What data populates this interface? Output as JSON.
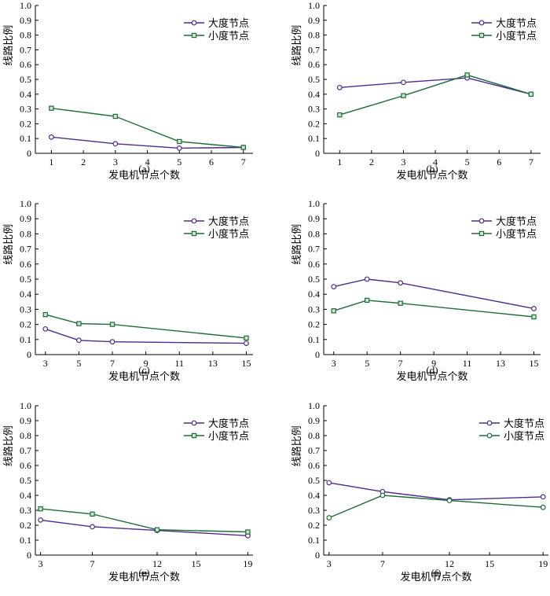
{
  "colors": {
    "large_degree": "#4b2d8a",
    "small_degree": "#1f6b3a"
  },
  "chart_data": [
    {
      "type": "line",
      "caption": "(a)",
      "xlabel": "发电机节点个数",
      "ylabel": "线路比例",
      "xlim": [
        0.5,
        7.3
      ],
      "ylim": [
        0,
        1
      ],
      "xticks": [
        1,
        2,
        3,
        4,
        5,
        6,
        7
      ],
      "yticks": [
        0,
        0.1,
        0.2,
        0.3,
        0.4,
        0.5,
        0.6,
        0.7,
        0.8,
        0.9,
        1.0
      ],
      "yticklabels": [
        "0",
        "0.1",
        "0.2",
        "0.3",
        "0.4",
        "0.5",
        "0.6",
        "0.7",
        "0.8",
        "0.9",
        "1.0"
      ],
      "x": [
        1,
        3,
        5,
        7
      ],
      "series": [
        {
          "name": "大度节点",
          "values": [
            0.11,
            0.065,
            0.035,
            0.04
          ],
          "marker": "circle"
        },
        {
          "name": "小度节点",
          "values": [
            0.305,
            0.25,
            0.08,
            0.04
          ],
          "marker": "square"
        }
      ],
      "legend": "top-right"
    },
    {
      "type": "line",
      "caption": "(b)",
      "xlabel": "发电机节点个数",
      "ylabel": "线路比例",
      "xlim": [
        0.5,
        7.3
      ],
      "ylim": [
        0,
        1
      ],
      "xticks": [
        1,
        2,
        3,
        4,
        5,
        6,
        7
      ],
      "yticks": [
        0,
        0.1,
        0.2,
        0.3,
        0.4,
        0.5,
        0.6,
        0.7,
        0.8,
        0.9,
        1.0
      ],
      "yticklabels": [
        "0",
        "0.1",
        "0.2",
        "0.3",
        "0.4",
        "0.5",
        "0.6",
        "0.7",
        "0.8",
        "0.9",
        "1.0"
      ],
      "x": [
        1,
        3,
        5,
        7
      ],
      "series": [
        {
          "name": "大度节点",
          "values": [
            0.445,
            0.48,
            0.51,
            0.4
          ],
          "marker": "circle"
        },
        {
          "name": "小度节点",
          "values": [
            0.26,
            0.39,
            0.53,
            0.4
          ],
          "marker": "square"
        }
      ],
      "legend": "top-right"
    },
    {
      "type": "line",
      "caption": "(c)",
      "xlabel": "发电机节点个数",
      "ylabel": "线路比例",
      "xlim": [
        2.4,
        15.4
      ],
      "ylim": [
        0,
        1
      ],
      "xticks": [
        3,
        5,
        7,
        9,
        11,
        13,
        15
      ],
      "yticks": [
        0,
        0.1,
        0.2,
        0.3,
        0.4,
        0.5,
        0.6,
        0.7,
        0.8,
        0.9,
        1.0
      ],
      "yticklabels": [
        "0",
        "0.1",
        "0.2",
        "0.3",
        "0.4",
        "0.5",
        "0.6",
        "0.7",
        "0.8",
        "0.9",
        "1.0"
      ],
      "x": [
        3,
        5,
        7,
        15
      ],
      "series": [
        {
          "name": "大度节点",
          "values": [
            0.17,
            0.095,
            0.085,
            0.075
          ],
          "marker": "circle"
        },
        {
          "name": "小度节点",
          "values": [
            0.265,
            0.205,
            0.2,
            0.11
          ],
          "marker": "square"
        }
      ],
      "legend": "top-right"
    },
    {
      "type": "line",
      "caption": "(d)",
      "xlabel": "发电机节点个数",
      "ylabel": "线路比例",
      "xlim": [
        2.4,
        15.4
      ],
      "ylim": [
        0,
        1
      ],
      "xticks": [
        3,
        5,
        7,
        9,
        11,
        13,
        15
      ],
      "yticks": [
        0,
        0.1,
        0.2,
        0.3,
        0.4,
        0.5,
        0.6,
        0.7,
        0.8,
        0.9,
        1.0
      ],
      "yticklabels": [
        "0",
        "0.1",
        "0.2",
        "0.3",
        "0.4",
        "0.5",
        "0.6",
        "0.7",
        "0.8",
        "0.9",
        "1.0"
      ],
      "x": [
        3,
        5,
        7,
        15
      ],
      "series": [
        {
          "name": "大度节点",
          "values": [
            0.45,
            0.5,
            0.475,
            0.305
          ],
          "marker": "circle"
        },
        {
          "name": "小度节点",
          "values": [
            0.29,
            0.36,
            0.34,
            0.25
          ],
          "marker": "square"
        }
      ],
      "legend": "top-right"
    },
    {
      "type": "line",
      "caption": "(e)",
      "xlabel": "发电机节点个数",
      "ylabel": "线路比例",
      "xlim": [
        2.6,
        19.4
      ],
      "ylim": [
        0,
        1
      ],
      "xticks": [
        3,
        7,
        12,
        15,
        19
      ],
      "yticks": [
        0,
        0.1,
        0.2,
        0.3,
        0.4,
        0.5,
        0.6,
        0.7,
        0.8,
        0.9,
        1.0
      ],
      "yticklabels": [
        "0",
        "0.1",
        "0.2",
        "0.3",
        "0.4",
        "0.5",
        "0.6",
        "0.7",
        "0.8",
        "0.9",
        "1.0"
      ],
      "x": [
        3,
        7,
        12,
        19
      ],
      "series": [
        {
          "name": "大度节点",
          "values": [
            0.235,
            0.19,
            0.165,
            0.13
          ],
          "marker": "circle"
        },
        {
          "name": "小度节点",
          "values": [
            0.31,
            0.275,
            0.17,
            0.155
          ],
          "marker": "square"
        }
      ],
      "legend": "top-right"
    },
    {
      "type": "line",
      "caption": "(f)",
      "xlabel": "发电机节点个数",
      "ylabel": "线路比例",
      "xlim": [
        2.6,
        19.4
      ],
      "ylim": [
        0,
        1
      ],
      "xticks": [
        3,
        7,
        12,
        15,
        19
      ],
      "yticks": [
        0,
        0.1,
        0.2,
        0.3,
        0.4,
        0.5,
        0.6,
        0.7,
        0.8,
        0.9,
        1.0
      ],
      "yticklabels": [
        "0",
        "0.1",
        "0.2",
        "0.3",
        "0.4",
        "0.5",
        "0.6",
        "0.7",
        "0.8",
        "0.9",
        "1.0"
      ],
      "x": [
        3,
        7,
        12,
        19
      ],
      "series": [
        {
          "name": "大度节点",
          "values": [
            0.485,
            0.425,
            0.37,
            0.39
          ],
          "marker": "circle"
        },
        {
          "name": "小度节点",
          "values": [
            0.25,
            0.4,
            0.365,
            0.32
          ],
          "marker": "circle"
        }
      ],
      "legend": "top-right"
    }
  ]
}
